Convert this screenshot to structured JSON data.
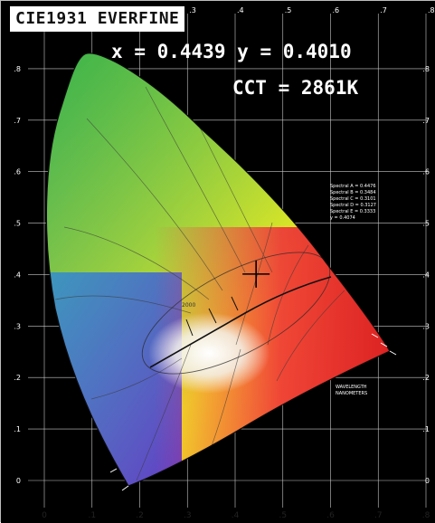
{
  "title": "CIE1931 EVERFINE",
  "measurement": {
    "x_label": "x",
    "x_value": "0.4439",
    "y_label": "y",
    "y_value": "0.4010",
    "cct_label": "CCT",
    "cct_value": "2861K"
  },
  "chart_data": {
    "type": "scatter",
    "x_ticks": [
      "0",
      ".1",
      ".2",
      ".3",
      ".4",
      ".5",
      ".6",
      ".7",
      ".8"
    ],
    "y_ticks": [
      "0",
      ".1",
      ".2",
      ".3",
      ".4",
      ".5",
      ".6",
      ".7",
      ".8"
    ],
    "xlim": [
      0,
      0.8
    ],
    "ylim": [
      0,
      0.9
    ],
    "grid": true,
    "point": {
      "x": 0.4439,
      "y": 0.401
    }
  },
  "colors": {
    "background": "#000000",
    "grid": "#c8c8c8",
    "text_overlay": "#ffffff",
    "marker": "#000000"
  }
}
